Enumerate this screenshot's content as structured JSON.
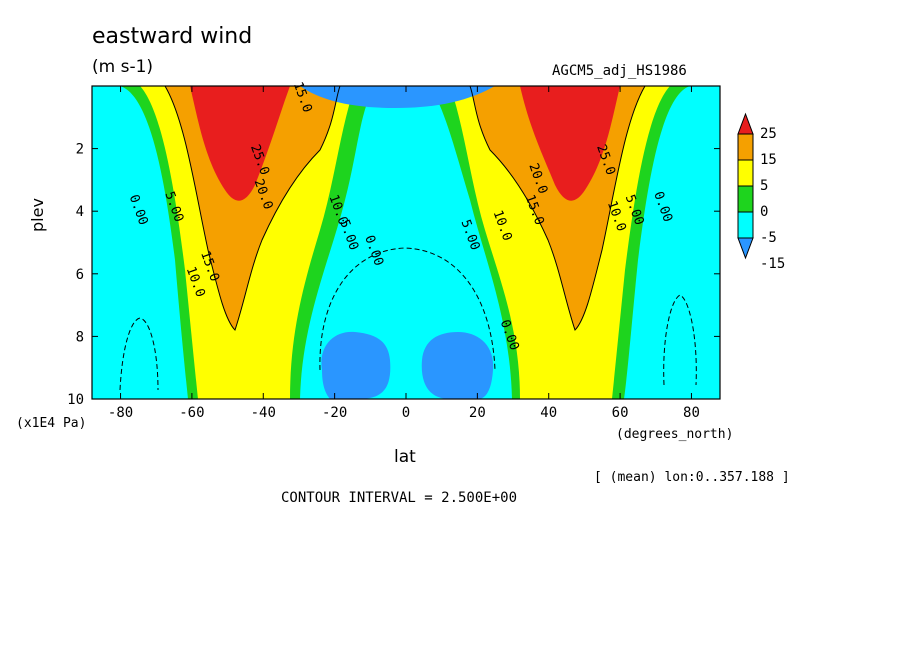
{
  "header": {
    "title": "eastward wind",
    "units": "(m s-1)",
    "model": "AGCM5_adj_HS1986",
    "mean_note": "[ (mean) lon:0..357.188 ]",
    "contour_interval": "CONTOUR INTERVAL = 2.500E+00"
  },
  "chart_data": {
    "type": "heatmap",
    "title": "eastward wind",
    "xlabel": "lat",
    "xunit": "(degrees_north)",
    "ylabel": "plev",
    "yunit": "(x1E4 Pa)",
    "xlim": [
      -88,
      88
    ],
    "ylim": [
      10,
      0
    ],
    "x_ticks": [
      "-80",
      "-60",
      "-40",
      "-20",
      "0",
      "20",
      "40",
      "60",
      "80"
    ],
    "y_ticks": [
      "2",
      "4",
      "6",
      "8",
      "10"
    ],
    "colorbar": {
      "labels": [
        "25",
        "15",
        "5",
        "0",
        "-5",
        "-15"
      ],
      "colors": [
        "#e81e1e",
        "#f5a000",
        "#ffff00",
        "#1ed41e",
        "#00ffff",
        "#2a96ff"
      ]
    },
    "contour_labels": [
      {
        "text": "0.00",
        "lat": -76,
        "plev": 4.0
      },
      {
        "text": "5.00",
        "lat": -66,
        "plev": 3.9
      },
      {
        "text": "10.0",
        "lat": -60,
        "plev": 6.3
      },
      {
        "text": "15.0",
        "lat": -56,
        "plev": 5.8
      },
      {
        "text": "20.0",
        "lat": -41,
        "plev": 3.5
      },
      {
        "text": "25.0",
        "lat": -42,
        "plev": 2.4
      },
      {
        "text": "15.0",
        "lat": -30,
        "plev": 0.4
      },
      {
        "text": "10.0",
        "lat": -20,
        "plev": 4.0
      },
      {
        "text": "5.00",
        "lat": -17,
        "plev": 4.8
      },
      {
        "text": "0.00",
        "lat": -10,
        "plev": 5.3
      },
      {
        "text": "5.00",
        "lat": 17,
        "plev": 4.8
      },
      {
        "text": "10.0",
        "lat": 26,
        "plev": 4.5
      },
      {
        "text": "15.0",
        "lat": 35,
        "plev": 4.0
      },
      {
        "text": "20.0",
        "lat": 36,
        "plev": 3.0
      },
      {
        "text": "25.0",
        "lat": 55,
        "plev": 2.4
      },
      {
        "text": "0.00",
        "lat": 28,
        "plev": 8.0
      },
      {
        "text": "10.0",
        "lat": 58,
        "plev": 4.2
      },
      {
        "text": "5.00",
        "lat": 63,
        "plev": 4.0
      },
      {
        "text": "0.00",
        "lat": 71,
        "plev": 3.9
      }
    ]
  }
}
